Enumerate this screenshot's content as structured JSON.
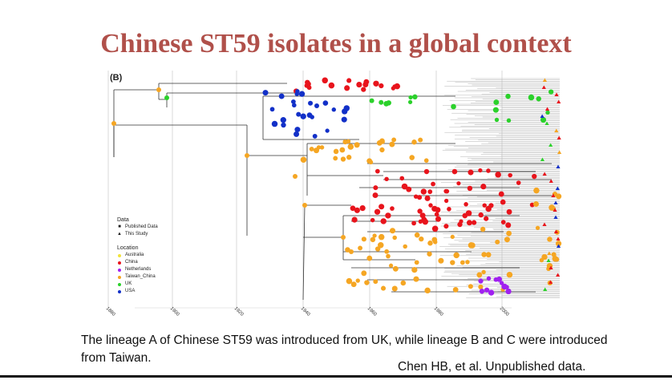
{
  "title": "Chinese ST59 isolates in a global context",
  "figure": {
    "panel_label": "(B)",
    "data_legend": {
      "heading": "Data",
      "items": [
        {
          "label": "Published Data",
          "symbol": "square-icon"
        },
        {
          "label": "This Study",
          "symbol": "triangle-icon"
        }
      ]
    },
    "location_legend": {
      "heading": "Location",
      "items": [
        {
          "label": "Australia",
          "color": "#f2e33a"
        },
        {
          "label": "China",
          "color": "#e8141c"
        },
        {
          "label": "Netherlands",
          "color": "#a020f0"
        },
        {
          "label": "Taiwan_China",
          "color": "#f5a623"
        },
        {
          "label": "UK",
          "color": "#2bd12b"
        },
        {
          "label": "USA",
          "color": "#1230c8"
        }
      ]
    },
    "axis_ticks": [
      "1880",
      "1900",
      "1920",
      "1940",
      "1960",
      "1980",
      "2000"
    ]
  },
  "caption": "The lineage A of Chinese ST59 was introduced from UK, while lineage B and C were introduced from Taiwan.",
  "credit": "Chen HB, et al. Unpublished data."
}
